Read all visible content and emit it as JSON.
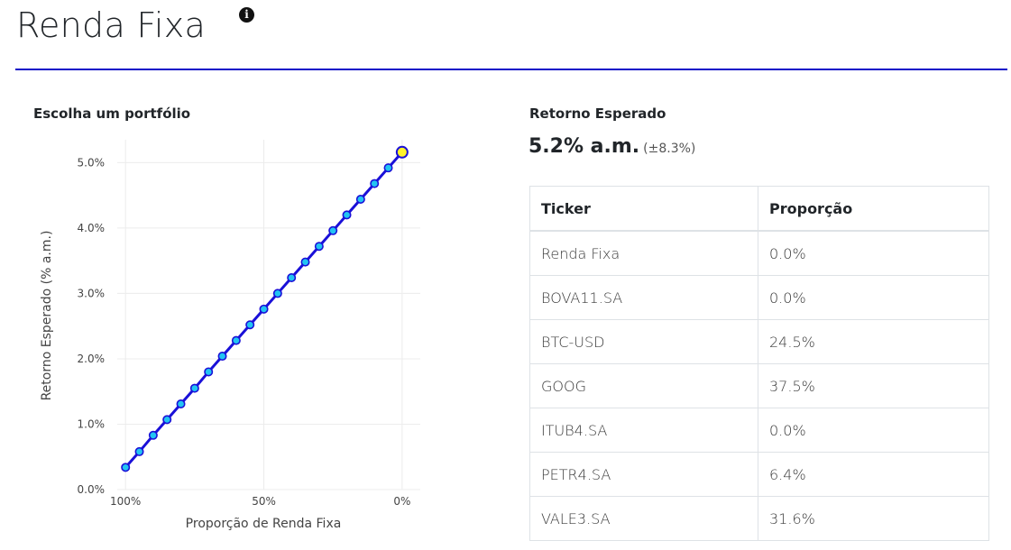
{
  "header": {
    "title": "Renda Fixa",
    "info_icon": "info-circle-icon"
  },
  "left_panel": {
    "label": "Escolha um portfólio"
  },
  "right_panel": {
    "label": "Retorno Esperado",
    "value": "5.2% a.m.",
    "std": "(±8.3%)"
  },
  "table": {
    "headers": [
      "Ticker",
      "Proporção"
    ],
    "rows": [
      {
        "ticker": "Renda Fixa",
        "prop": "0.0%"
      },
      {
        "ticker": "BOVA11.SA",
        "prop": "0.0%"
      },
      {
        "ticker": "BTC-USD",
        "prop": "24.5%"
      },
      {
        "ticker": "GOOG",
        "prop": "37.5%"
      },
      {
        "ticker": "ITUB4.SA",
        "prop": "0.0%"
      },
      {
        "ticker": "PETR4.SA",
        "prop": "6.4%"
      },
      {
        "ticker": "VALE3.SA",
        "prop": "31.6%"
      }
    ]
  },
  "colors": {
    "accent_rule": "#1010c8",
    "line": "#1a10d8",
    "marker_fill": "#22c4f2",
    "selected_fill": "#fff32a",
    "grid": "#ececec"
  },
  "chart_data": {
    "type": "line",
    "xlabel": "Proporção de Renda Fixa",
    "ylabel": "Retorno Esperado (% a.m.)",
    "x_reversed": true,
    "xlim": [
      103,
      -2
    ],
    "ylim": [
      0,
      5.35
    ],
    "xticks": [
      100,
      50,
      0
    ],
    "xtick_labels": [
      "100%",
      "50%",
      "0%"
    ],
    "yticks": [
      0,
      1,
      2,
      3,
      4,
      5
    ],
    "ytick_labels": [
      "0.0%",
      "1.0%",
      "2.0%",
      "3.0%",
      "4.0%",
      "5.0%"
    ],
    "grid": true,
    "series": [
      {
        "x": [
          100,
          95,
          90,
          85,
          80,
          75,
          70,
          65,
          60,
          55,
          50,
          45,
          40,
          35,
          30,
          25,
          20,
          15,
          10,
          5,
          0
        ],
        "values": [
          0.34,
          0.58,
          0.83,
          1.07,
          1.31,
          1.55,
          1.8,
          2.04,
          2.28,
          2.52,
          2.76,
          3.0,
          3.24,
          3.48,
          3.72,
          3.96,
          4.2,
          4.44,
          4.68,
          4.92,
          5.16
        ]
      }
    ],
    "selected_x": 0
  }
}
